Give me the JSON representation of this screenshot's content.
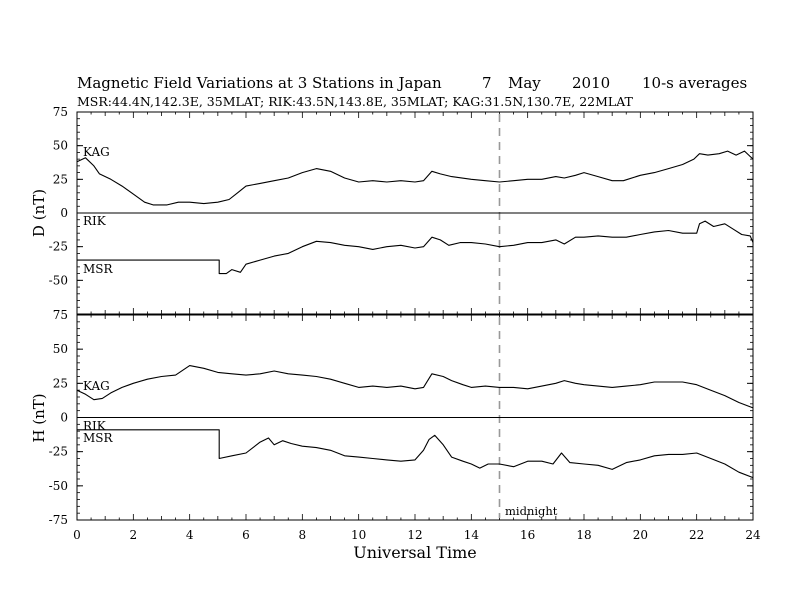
{
  "title": {
    "main": "Magnetic Field Variations at 3 Stations in Japan",
    "day": "7",
    "month": "May",
    "year": "2010",
    "avg": "10-s averages",
    "stations_line": "MSR:44.4N,142.3E, 35MLAT;  RIK:43.5N,143.8E, 35MLAT;  KAG:31.5N,130.7E, 22MLAT"
  },
  "x_axis_label": "Universal Time",
  "panel_labels": {
    "d": "D (nT)",
    "h": "H (nT)"
  },
  "annotation": "midnight",
  "chart_data": [
    {
      "type": "line",
      "panel": "D",
      "ylabel": "D (nT)",
      "xlabel": "Universal Time",
      "xlim": [
        0,
        24
      ],
      "ylim": [
        -75,
        75
      ],
      "xticks": [
        0,
        2,
        4,
        6,
        8,
        10,
        12,
        14,
        16,
        18,
        20,
        22,
        24
      ],
      "yticks": [
        75,
        50,
        25,
        0,
        -25,
        -50,
        -75
      ],
      "grid": false,
      "vline": 15,
      "series": [
        {
          "name": "KAG",
          "points": [
            [
              0,
              38
            ],
            [
              0.3,
              41
            ],
            [
              0.6,
              35
            ],
            [
              0.8,
              29
            ],
            [
              1.2,
              25
            ],
            [
              1.6,
              20
            ],
            [
              2,
              14
            ],
            [
              2.4,
              8
            ],
            [
              2.7,
              6
            ],
            [
              3.2,
              6
            ],
            [
              3.6,
              8
            ],
            [
              4,
              8
            ],
            [
              4.5,
              7
            ],
            [
              5,
              8
            ],
            [
              5.4,
              10
            ],
            [
              5.7,
              15
            ],
            [
              6,
              20
            ],
            [
              6.5,
              22
            ],
            [
              7,
              24
            ],
            [
              7.5,
              26
            ],
            [
              8,
              30
            ],
            [
              8.5,
              33
            ],
            [
              9,
              31
            ],
            [
              9.5,
              26
            ],
            [
              10,
              23
            ],
            [
              10.5,
              24
            ],
            [
              11,
              23
            ],
            [
              11.5,
              24
            ],
            [
              12,
              23
            ],
            [
              12.3,
              24
            ],
            [
              12.6,
              31
            ],
            [
              12.9,
              29
            ],
            [
              13.3,
              27
            ],
            [
              14,
              25
            ],
            [
              14.5,
              24
            ],
            [
              15,
              23
            ],
            [
              15.5,
              24
            ],
            [
              16,
              25
            ],
            [
              16.5,
              25
            ],
            [
              17,
              27
            ],
            [
              17.3,
              26
            ],
            [
              17.7,
              28
            ],
            [
              18,
              30
            ],
            [
              18.5,
              27
            ],
            [
              19,
              24
            ],
            [
              19.4,
              24
            ],
            [
              20,
              28
            ],
            [
              20.5,
              30
            ],
            [
              21,
              33
            ],
            [
              21.5,
              36
            ],
            [
              21.9,
              40
            ],
            [
              22.1,
              44
            ],
            [
              22.4,
              43
            ],
            [
              22.8,
              44
            ],
            [
              23.1,
              46
            ],
            [
              23.4,
              43
            ],
            [
              23.7,
              46
            ],
            [
              24,
              40
            ]
          ]
        },
        {
          "name": "RIK",
          "points": [
            [
              0,
              0
            ],
            [
              24,
              0
            ]
          ]
        },
        {
          "name": "MSR",
          "points": [
            [
              0,
              -35
            ],
            [
              5.05,
              -35
            ],
            [
              5.05,
              -45
            ],
            [
              5.3,
              -45
            ],
            [
              5.5,
              -42
            ],
            [
              5.8,
              -44
            ],
            [
              6,
              -38
            ],
            [
              6.5,
              -35
            ],
            [
              7,
              -32
            ],
            [
              7.5,
              -30
            ],
            [
              8,
              -25
            ],
            [
              8.5,
              -21
            ],
            [
              9,
              -22
            ],
            [
              9.5,
              -24
            ],
            [
              10,
              -25
            ],
            [
              10.5,
              -27
            ],
            [
              11,
              -25
            ],
            [
              11.5,
              -24
            ],
            [
              12,
              -26
            ],
            [
              12.3,
              -25
            ],
            [
              12.6,
              -18
            ],
            [
              12.9,
              -20
            ],
            [
              13.2,
              -24
            ],
            [
              13.6,
              -22
            ],
            [
              14,
              -22
            ],
            [
              14.5,
              -23
            ],
            [
              15,
              -25
            ],
            [
              15.5,
              -24
            ],
            [
              16,
              -22
            ],
            [
              16.5,
              -22
            ],
            [
              17,
              -20
            ],
            [
              17.3,
              -23
            ],
            [
              17.7,
              -18
            ],
            [
              18,
              -18
            ],
            [
              18.5,
              -17
            ],
            [
              19,
              -18
            ],
            [
              19.5,
              -18
            ],
            [
              20,
              -16
            ],
            [
              20.5,
              -14
            ],
            [
              21,
              -13
            ],
            [
              21.5,
              -15
            ],
            [
              22,
              -15
            ],
            [
              22.1,
              -8
            ],
            [
              22.3,
              -6
            ],
            [
              22.6,
              -10
            ],
            [
              23,
              -8
            ],
            [
              23.3,
              -12
            ],
            [
              23.6,
              -16
            ],
            [
              23.9,
              -17
            ],
            [
              24,
              -22
            ]
          ]
        }
      ]
    },
    {
      "type": "line",
      "panel": "H",
      "ylabel": "H (nT)",
      "xlabel": "Universal Time",
      "xlim": [
        0,
        24
      ],
      "ylim": [
        -75,
        75
      ],
      "xticks": [
        0,
        2,
        4,
        6,
        8,
        10,
        12,
        14,
        16,
        18,
        20,
        22,
        24
      ],
      "yticks": [
        75,
        50,
        25,
        0,
        -25,
        -50,
        -75
      ],
      "grid": false,
      "vline": 15,
      "series": [
        {
          "name": "KAG",
          "points": [
            [
              0,
              20
            ],
            [
              0.3,
              17
            ],
            [
              0.6,
              13
            ],
            [
              0.9,
              14
            ],
            [
              1.2,
              18
            ],
            [
              1.6,
              22
            ],
            [
              2,
              25
            ],
            [
              2.5,
              28
            ],
            [
              3,
              30
            ],
            [
              3.5,
              31
            ],
            [
              4,
              38
            ],
            [
              4.5,
              36
            ],
            [
              5,
              33
            ],
            [
              5.5,
              32
            ],
            [
              6,
              31
            ],
            [
              6.5,
              32
            ],
            [
              7,
              34
            ],
            [
              7.5,
              32
            ],
            [
              8,
              31
            ],
            [
              8.5,
              30
            ],
            [
              9,
              28
            ],
            [
              9.5,
              25
            ],
            [
              10,
              22
            ],
            [
              10.5,
              23
            ],
            [
              11,
              22
            ],
            [
              11.5,
              23
            ],
            [
              12,
              21
            ],
            [
              12.3,
              22
            ],
            [
              12.6,
              32
            ],
            [
              13,
              30
            ],
            [
              13.3,
              27
            ],
            [
              13.7,
              24
            ],
            [
              14,
              22
            ],
            [
              14.5,
              23
            ],
            [
              15,
              22
            ],
            [
              15.5,
              22
            ],
            [
              16,
              21
            ],
            [
              16.5,
              23
            ],
            [
              17,
              25
            ],
            [
              17.3,
              27
            ],
            [
              17.7,
              25
            ],
            [
              18,
              24
            ],
            [
              18.5,
              23
            ],
            [
              19,
              22
            ],
            [
              19.5,
              23
            ],
            [
              20,
              24
            ],
            [
              20.5,
              26
            ],
            [
              21,
              26
            ],
            [
              21.5,
              26
            ],
            [
              22,
              24
            ],
            [
              22.5,
              20
            ],
            [
              23,
              16
            ],
            [
              23.5,
              11
            ],
            [
              24,
              7
            ]
          ]
        },
        {
          "name": "RIK",
          "points": [
            [
              0,
              0
            ],
            [
              24,
              0
            ]
          ]
        },
        {
          "name": "MSR",
          "points": [
            [
              0,
              -9
            ],
            [
              5.05,
              -9
            ],
            [
              5.05,
              -30
            ],
            [
              5.5,
              -28
            ],
            [
              6,
              -26
            ],
            [
              6.5,
              -18
            ],
            [
              6.8,
              -15
            ],
            [
              7,
              -20
            ],
            [
              7.3,
              -17
            ],
            [
              7.6,
              -19
            ],
            [
              8,
              -21
            ],
            [
              8.5,
              -22
            ],
            [
              9,
              -24
            ],
            [
              9.5,
              -28
            ],
            [
              10,
              -29
            ],
            [
              10.5,
              -30
            ],
            [
              11,
              -31
            ],
            [
              11.5,
              -32
            ],
            [
              12,
              -31
            ],
            [
              12.3,
              -24
            ],
            [
              12.5,
              -16
            ],
            [
              12.7,
              -13
            ],
            [
              13,
              -20
            ],
            [
              13.3,
              -29
            ],
            [
              13.7,
              -32
            ],
            [
              14,
              -34
            ],
            [
              14.3,
              -37
            ],
            [
              14.6,
              -34
            ],
            [
              15,
              -34
            ],
            [
              15.5,
              -36
            ],
            [
              16,
              -32
            ],
            [
              16.5,
              -32
            ],
            [
              16.9,
              -34
            ],
            [
              17.2,
              -26
            ],
            [
              17.5,
              -33
            ],
            [
              18,
              -34
            ],
            [
              18.5,
              -35
            ],
            [
              19,
              -38
            ],
            [
              19.5,
              -33
            ],
            [
              20,
              -31
            ],
            [
              20.5,
              -28
            ],
            [
              21,
              -27
            ],
            [
              21.5,
              -27
            ],
            [
              22,
              -26
            ],
            [
              22.5,
              -30
            ],
            [
              23,
              -34
            ],
            [
              23.5,
              -40
            ],
            [
              24,
              -44
            ]
          ]
        }
      ]
    }
  ]
}
